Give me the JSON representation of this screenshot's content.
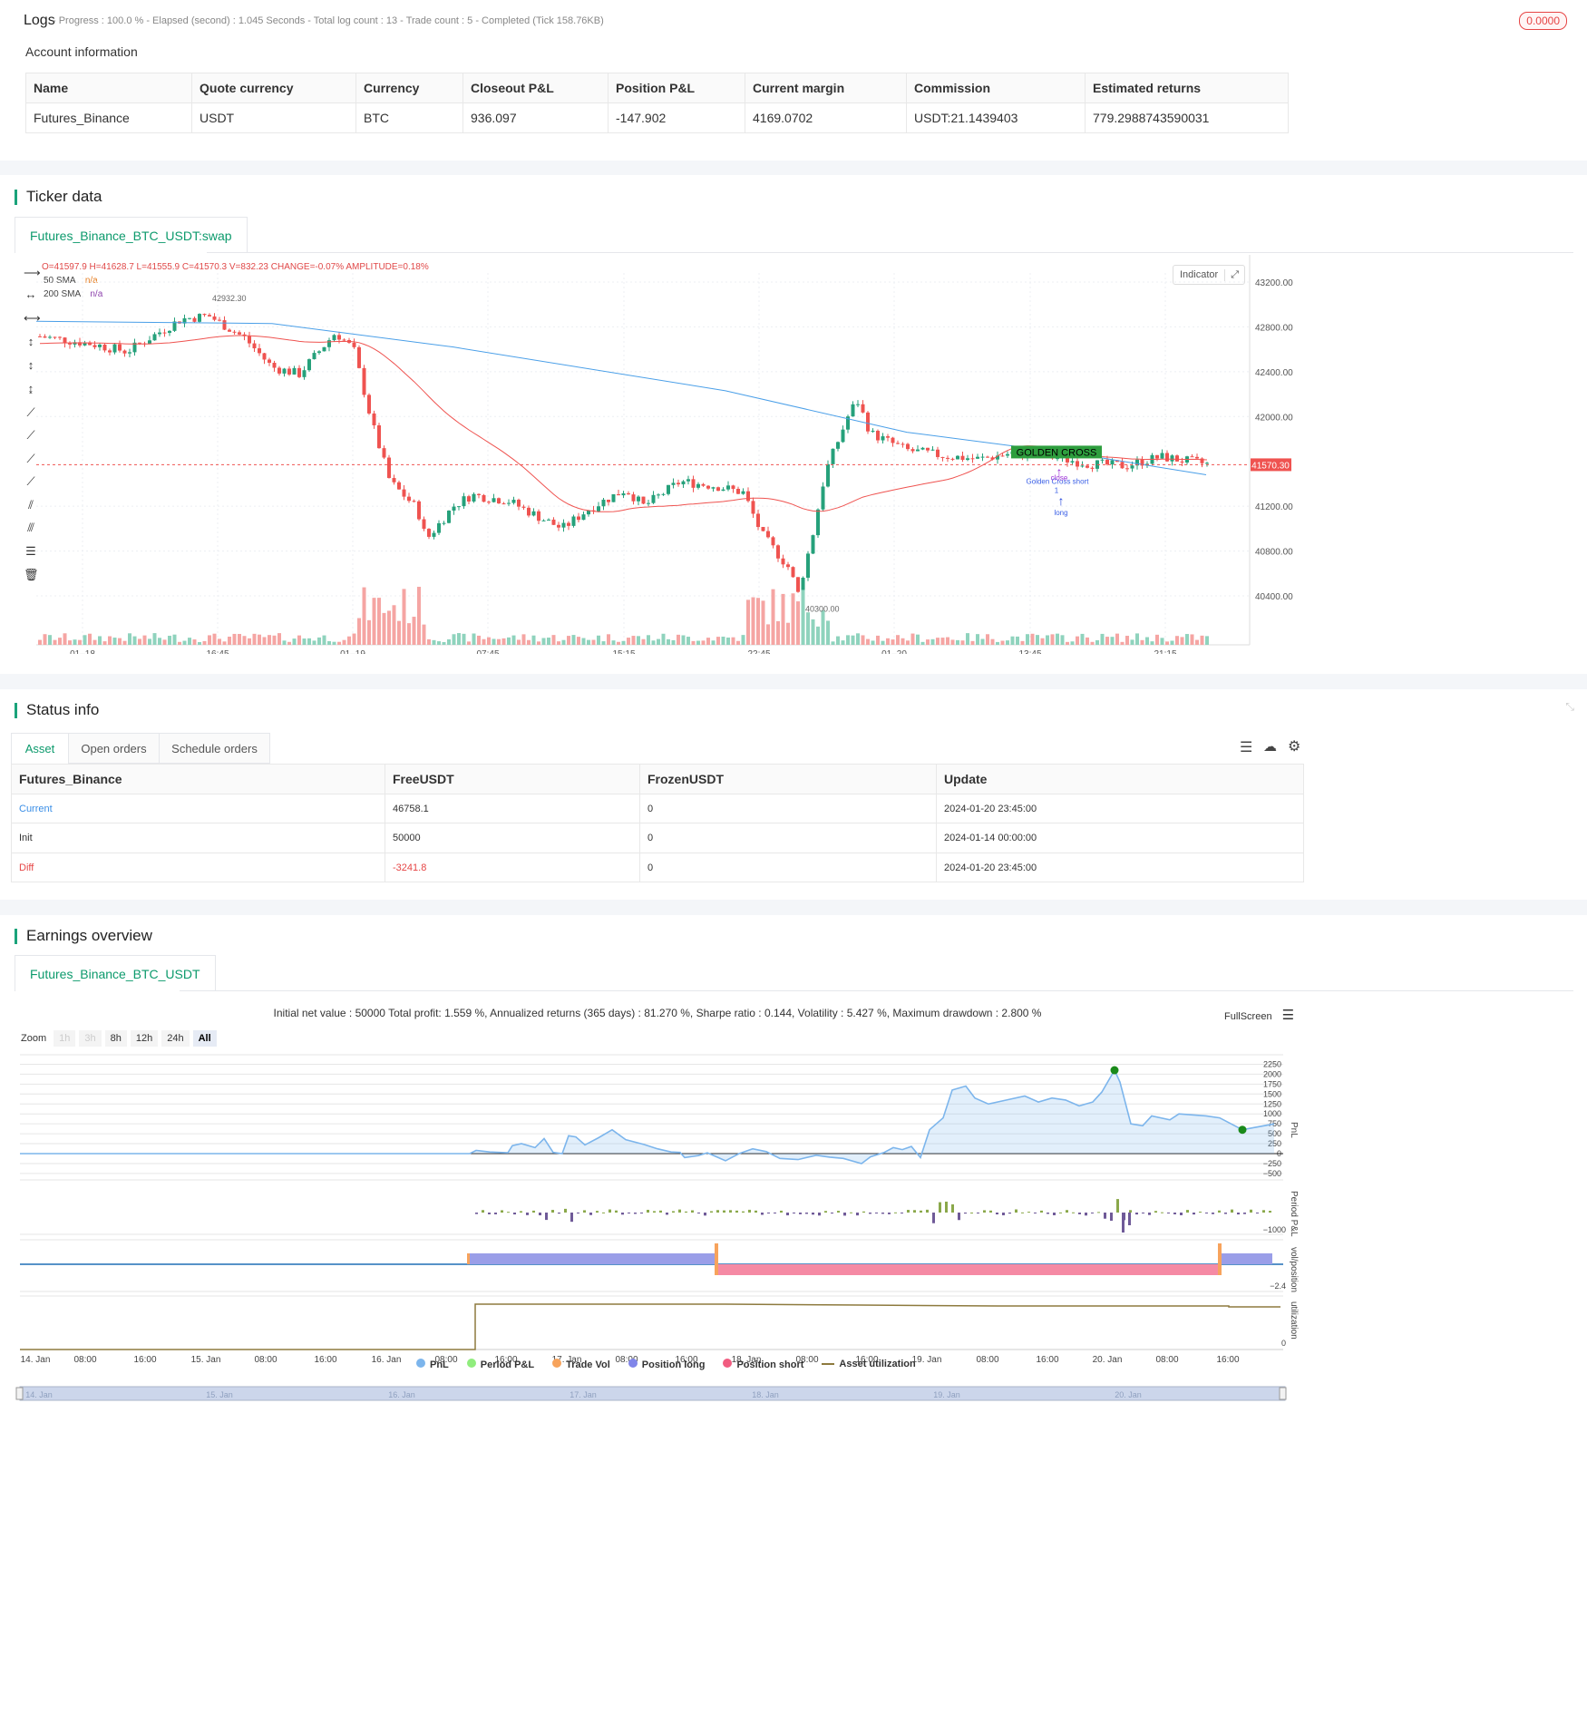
{
  "logs": {
    "title": "Logs",
    "progress_text": "- Progress : 100.0 % - Elapsed (second) : 1.045  Seconds - Total log count : 13 - Trade count : 5 - Completed (Tick 158.76KB)",
    "badge": "0.0000",
    "account_heading": "Account information",
    "columns": [
      "Name",
      "Quote currency",
      "Currency",
      "Closeout P&L",
      "Position P&L",
      "Current margin",
      "Commission",
      "Estimated returns"
    ],
    "row": [
      "Futures_Binance",
      "USDT",
      "BTC",
      "936.097",
      "-147.902",
      "4169.0702",
      "USDT:21.1439403",
      "779.2988743590031"
    ]
  },
  "ticker": {
    "title": "Ticker data",
    "tab": "Futures_Binance_BTC_USDT:swap",
    "ohlc": {
      "o": "O=41597.9",
      "h": "H=41628.7",
      "l": "L=41555.9",
      "c": "C=41570.3",
      "v": "V=832.23",
      "change": "CHANGE=-0.07%",
      "amplitude": "AMPLITUDE=0.18%"
    },
    "legend": [
      {
        "name": "50 SMA",
        "value": "n/a",
        "color": "#e67e22"
      },
      {
        "name": "200 SMA",
        "value": "n/a",
        "color": "#8e44ad"
      }
    ],
    "indicator_btn": "Indicator",
    "y_ticks": [
      "43200.00",
      "42800.00",
      "42400.00",
      "42000.00",
      "41200.00",
      "40800.00",
      "40400.00"
    ],
    "x_ticks": [
      "01–18",
      "16:45",
      "01–19",
      "07:45",
      "15:15",
      "22:45",
      "01–20",
      "13:45",
      "21:15"
    ],
    "price_tag": "41570.30",
    "high_label": "42932.30",
    "low_label": "40300.00",
    "golden_cross": "GOLDEN CROSS",
    "ann_short": "Golden Cross short",
    "ann_close": "close",
    "ann_one": "1",
    "ann_long": "long",
    "colors": {
      "up": "#26a17b",
      "down": "#ef5350",
      "sma50": "#ef5350",
      "sma200": "#4a9fe8"
    }
  },
  "status": {
    "title": "Status info",
    "tabs": [
      "Asset",
      "Open orders",
      "Schedule orders"
    ],
    "columns": [
      "Futures_Binance",
      "FreeUSDT",
      "FrozenUSDT",
      "Update"
    ],
    "rows": [
      [
        "Current",
        "46758.1",
        "0",
        "2024-01-20 23:45:00"
      ],
      [
        "Init",
        "50000",
        "0",
        "2024-01-14 00:00:00"
      ],
      [
        "Diff",
        "-3241.8",
        "0",
        "2024-01-20 23:45:00"
      ]
    ]
  },
  "earnings": {
    "title": "Earnings overview",
    "tab": "Futures_Binance_BTC_USDT",
    "summary": "Initial net value : 50000 Total profit: 1.559 %, Annualized returns (365 days) : 81.270 %, Sharpe ratio : 0.144, Volatility : 5.427 %, Maximum drawdown : 2.800 %",
    "fullscreen": "FullScreen",
    "zoom_label": "Zoom",
    "zoom_options": [
      "1h",
      "3h",
      "8h",
      "12h",
      "24h",
      "All"
    ],
    "pnl_ticks": [
      "2250",
      "2000",
      "1750",
      "1500",
      "1250",
      "1000",
      "750",
      "500",
      "250",
      "0",
      "−250",
      "−500"
    ],
    "pnl_axis": "PnL",
    "period_axis": "Period P&L",
    "period_tick": "−1000",
    "vol_axis": "vol/position",
    "vol_tick": "−2.4",
    "util_axis": "utilization",
    "util_tick": "0",
    "x_ticks": [
      "14. Jan",
      "08:00",
      "16:00",
      "15. Jan",
      "08:00",
      "16:00",
      "16. Jan",
      "08:00",
      "16:00",
      "17. Jan",
      "08:00",
      "16:00",
      "18. Jan",
      "08:00",
      "16:00",
      "19. Jan",
      "08:00",
      "16:00",
      "20. Jan",
      "08:00",
      "16:00"
    ],
    "nav_ticks": [
      "14. Jan",
      "15. Jan",
      "16. Jan",
      "17. Jan",
      "18. Jan",
      "19. Jan",
      "20. Jan"
    ],
    "legend": [
      {
        "name": "PnL",
        "color": "#7cb5ec"
      },
      {
        "name": "Period P&L",
        "color": "#90ed7d"
      },
      {
        "name": "Trade Vol",
        "color": "#f7a35c"
      },
      {
        "name": "Position long",
        "color": "#8085e9"
      },
      {
        "name": "Position short",
        "color": "#f15c80"
      },
      {
        "name": "Asset utilization",
        "color": "#8d7a3e"
      }
    ]
  }
}
